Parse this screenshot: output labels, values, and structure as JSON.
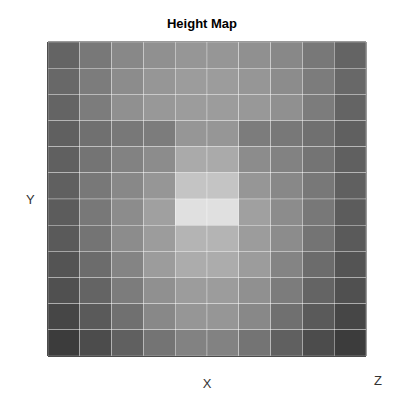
{
  "chart_data": {
    "type": "surface",
    "title": "Height Map",
    "xlabel": "X",
    "ylabel": "Y",
    "zlabel": "Z",
    "tick_labels": false,
    "xlim": [
      0.5,
      10.5
    ],
    "ylim": [
      0.5,
      12.5
    ],
    "zlim": [
      0,
      1
    ],
    "x": [
      1,
      2,
      3,
      4,
      5,
      6,
      7,
      8,
      9,
      10
    ],
    "y": [
      12,
      11,
      10,
      9,
      8,
      7,
      6,
      5,
      4,
      3,
      2,
      1
    ],
    "z": [
      [
        0.3,
        0.4,
        0.48,
        0.52,
        0.55,
        0.55,
        0.52,
        0.48,
        0.4,
        0.3
      ],
      [
        0.32,
        0.42,
        0.5,
        0.55,
        0.58,
        0.58,
        0.55,
        0.5,
        0.42,
        0.32
      ],
      [
        0.3,
        0.42,
        0.52,
        0.56,
        0.58,
        0.58,
        0.56,
        0.52,
        0.42,
        0.3
      ],
      [
        0.28,
        0.36,
        0.4,
        0.42,
        0.55,
        0.55,
        0.42,
        0.4,
        0.36,
        0.28
      ],
      [
        0.28,
        0.38,
        0.45,
        0.5,
        0.65,
        0.65,
        0.5,
        0.45,
        0.38,
        0.28
      ],
      [
        0.28,
        0.4,
        0.48,
        0.55,
        0.78,
        0.78,
        0.55,
        0.48,
        0.4,
        0.28
      ],
      [
        0.26,
        0.4,
        0.5,
        0.6,
        0.92,
        0.92,
        0.6,
        0.5,
        0.4,
        0.26
      ],
      [
        0.25,
        0.38,
        0.5,
        0.58,
        0.7,
        0.7,
        0.58,
        0.5,
        0.38,
        0.25
      ],
      [
        0.22,
        0.34,
        0.46,
        0.58,
        0.66,
        0.66,
        0.58,
        0.46,
        0.34,
        0.22
      ],
      [
        0.2,
        0.3,
        0.42,
        0.52,
        0.58,
        0.58,
        0.52,
        0.42,
        0.3,
        0.2
      ],
      [
        0.15,
        0.25,
        0.36,
        0.48,
        0.55,
        0.55,
        0.48,
        0.36,
        0.25,
        0.15
      ],
      [
        0.1,
        0.18,
        0.28,
        0.38,
        0.45,
        0.45,
        0.38,
        0.28,
        0.18,
        0.1
      ]
    ]
  }
}
